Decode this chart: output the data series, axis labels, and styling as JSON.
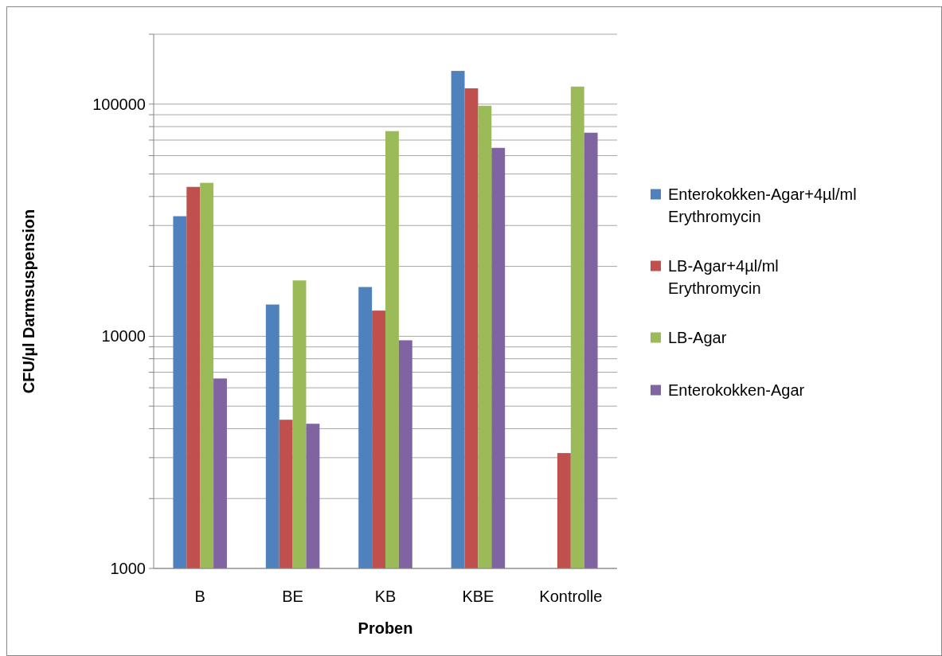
{
  "chart_data": {
    "type": "bar",
    "xlabel": "Proben",
    "ylabel": "CFU/µl Darmsuspension",
    "categories": [
      "B",
      "BE",
      "KB",
      "KBE",
      "Kontrolle"
    ],
    "series": [
      {
        "name": "Enterokokken-Agar+4µl/ml Erythromycin",
        "color": "#4f81bd",
        "values": [
          32900,
          13700,
          16300,
          139000,
          null
        ]
      },
      {
        "name": "LB-Agar+4µl/ml Erythromycin",
        "color": "#c0504d",
        "values": [
          44000,
          4370,
          12900,
          117000,
          3140
        ]
      },
      {
        "name": "LB-Agar",
        "color": "#9bbb59",
        "values": [
          45800,
          17400,
          76500,
          98400,
          119000
        ]
      },
      {
        "name": "Enterokokken-Agar",
        "color": "#8064a2",
        "values": [
          6580,
          4200,
          9610,
          64800,
          75300
        ]
      }
    ],
    "log": true,
    "ylim": [
      1000,
      200000
    ],
    "yticks": [
      1000,
      {
        "value": 2000,
        "label": null
      },
      {
        "value": 3000,
        "label": null
      },
      {
        "value": 4000,
        "label": null
      },
      {
        "value": 5000,
        "label": null
      },
      {
        "value": 6000,
        "label": null
      },
      {
        "value": 7000,
        "label": null
      },
      {
        "value": 8000,
        "label": null
      },
      {
        "value": 9000,
        "label": null
      },
      10000,
      {
        "value": 20000,
        "label": null
      },
      {
        "value": 30000,
        "label": null
      },
      {
        "value": 40000,
        "label": null
      },
      {
        "value": 50000,
        "label": null
      },
      {
        "value": 60000,
        "label": null
      },
      {
        "value": 70000,
        "label": null
      },
      {
        "value": 80000,
        "label": null
      },
      {
        "value": 90000,
        "label": null
      },
      100000,
      {
        "value": 200000,
        "label": null
      }
    ],
    "grid": "y",
    "legend": "right"
  }
}
